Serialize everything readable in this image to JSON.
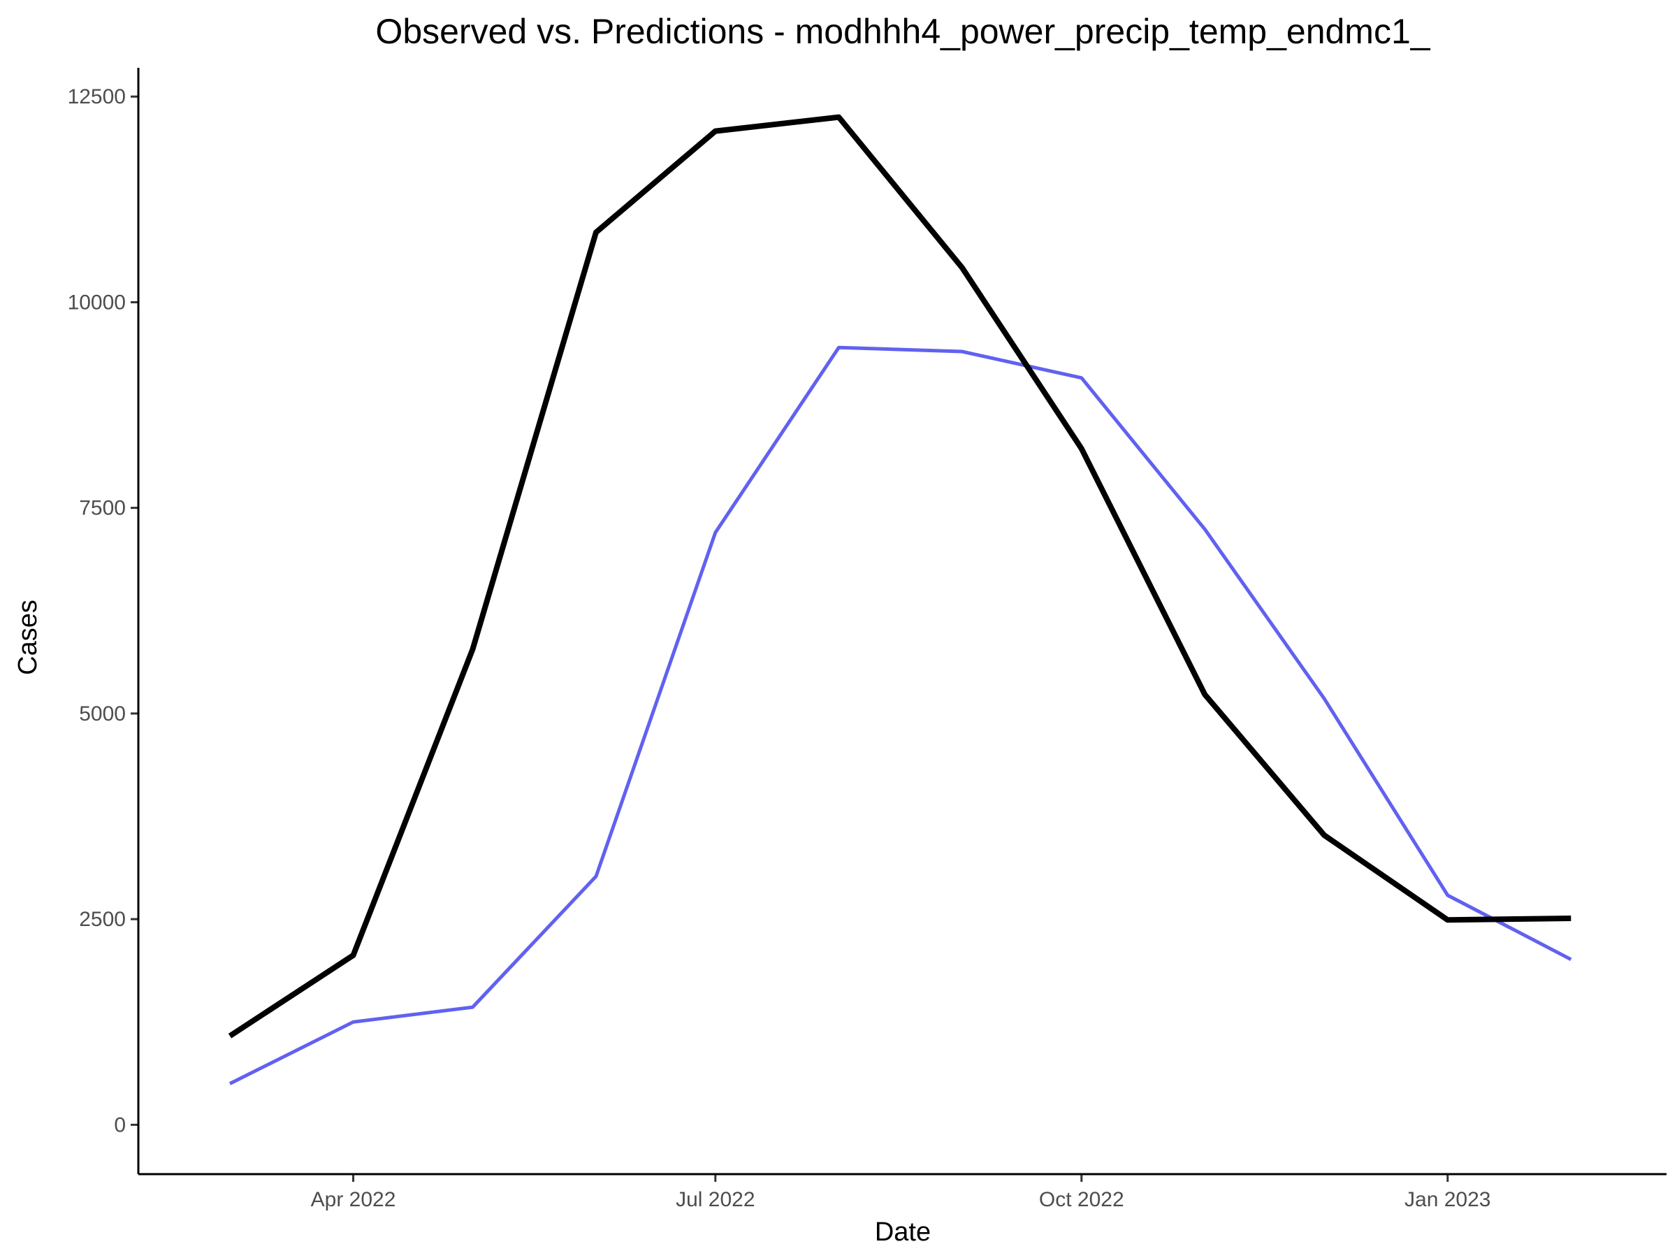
{
  "chart_data": {
    "type": "line",
    "title": "Observed vs. Predictions - modhhh4_power_precip_temp_endmc1_",
    "xlabel": "Date",
    "ylabel": "Cases",
    "ylim": [
      -600,
      12850
    ],
    "y_ticks": [
      0,
      2500,
      5000,
      7500,
      10000,
      12500
    ],
    "y_tick_labels": [
      "0",
      "2500",
      "5000",
      "7500",
      "10000",
      "12500"
    ],
    "x_range": [
      "2022-02-06",
      "2023-02-25"
    ],
    "x_ticks": [
      "2022-04-01",
      "2022-07-01",
      "2022-10-01",
      "2023-01-01"
    ],
    "x_tick_labels": [
      "Apr 2022",
      "Jul 2022",
      "Oct 2022",
      "Jan 2023"
    ],
    "grid": false,
    "legend": "none",
    "x": [
      "2022-03-01",
      "2022-04-01",
      "2022-05-01",
      "2022-06-01",
      "2022-07-01",
      "2022-08-01",
      "2022-09-01",
      "2022-10-01",
      "2022-11-01",
      "2022-12-01",
      "2023-01-01",
      "2023-02-01"
    ],
    "series": [
      {
        "color": "#000000",
        "values": [
          1080,
          2060,
          5780,
          10850,
          12080,
          12250,
          10420,
          8220,
          5230,
          3520,
          2490,
          2510
        ]
      },
      {
        "color": "#6161f0",
        "values": [
          500,
          1250,
          1430,
          3020,
          7200,
          9450,
          9400,
          9080,
          7240,
          5180,
          2790,
          2010
        ]
      }
    ]
  }
}
